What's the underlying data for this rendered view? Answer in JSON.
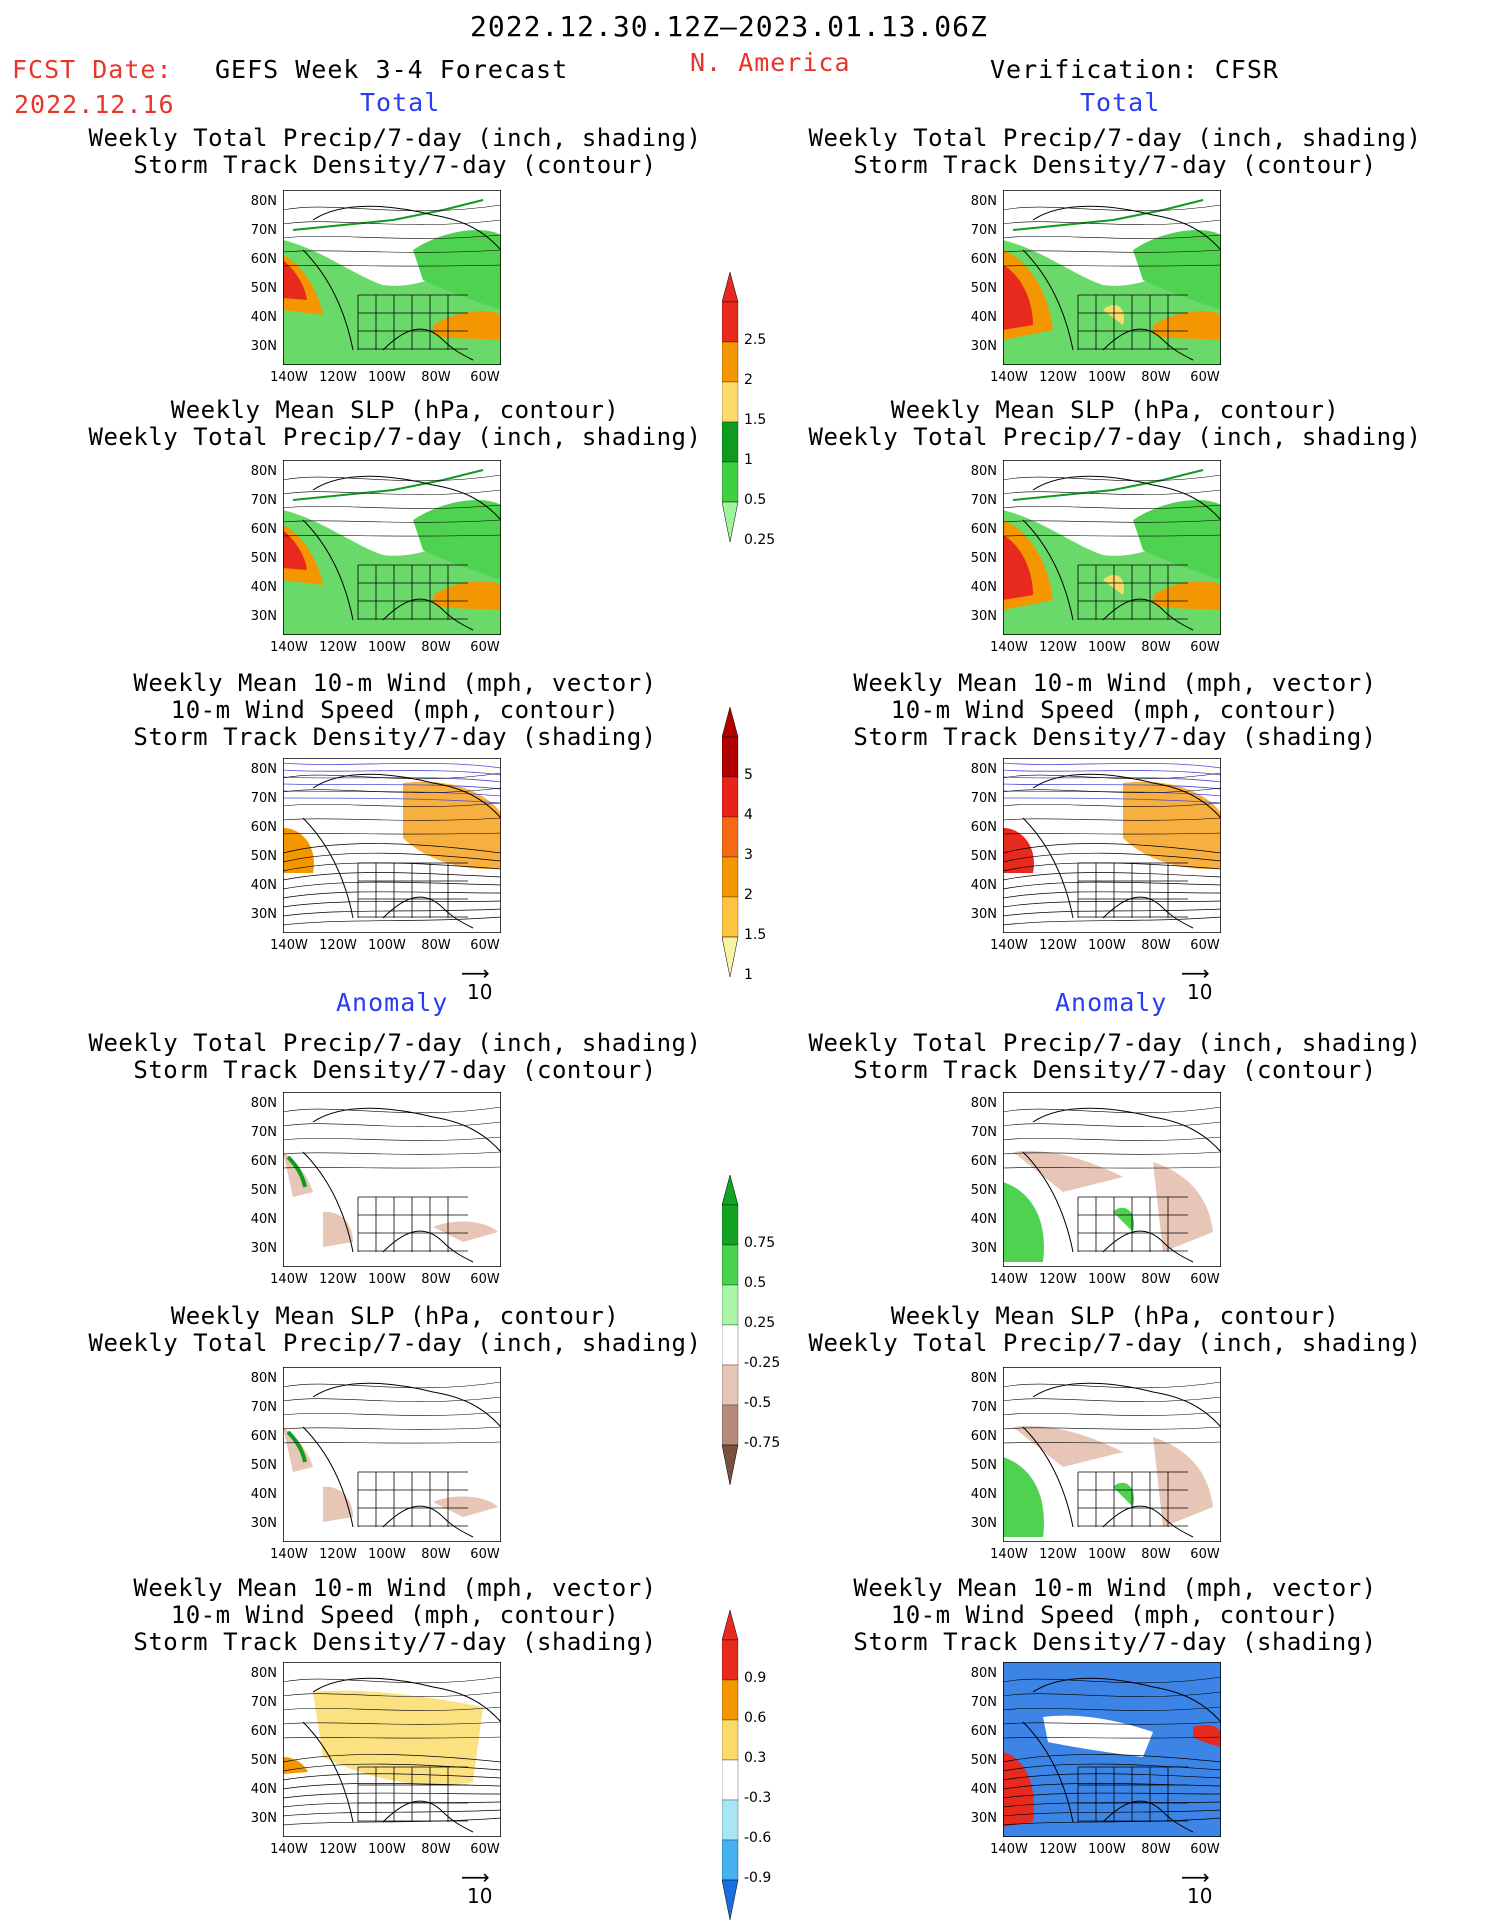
{
  "header": {
    "date_range": "2022.12.30.12Z–2023.01.13.06Z",
    "fcst_date_label": "FCST Date:",
    "fcst_date_value": "2022.12.16",
    "forecast_label": "GEFS Week 3-4 Forecast",
    "region": "N. America",
    "verification_label": "Verification: CFSR"
  },
  "sections": {
    "total": "Total",
    "anomaly": "Anomaly"
  },
  "titles": {
    "precip_track": [
      "Weekly Total Precip/7-day (inch, shading)",
      "Storm Track Density/7-day (contour)"
    ],
    "slp_precip": [
      "Weekly Mean SLP (hPa, contour)",
      "Weekly Total Precip/7-day (inch, shading)"
    ],
    "wind_track": [
      "Weekly Mean 10-m Wind (mph, vector)",
      "10-m Wind Speed (mph, contour)",
      "Storm Track Density/7-day (shading)"
    ]
  },
  "axes": {
    "lat_labels": [
      "80N",
      "70N",
      "60N",
      "50N",
      "40N",
      "30N"
    ],
    "lon_labels": [
      "140W",
      "120W",
      "100W",
      "80W",
      "60W"
    ]
  },
  "vector_reference": "10",
  "colorbars": [
    {
      "labels": [
        "2.5",
        "2",
        "1.5",
        "1",
        "0.5",
        "0.25"
      ],
      "colors": [
        "#e8291e",
        "#f49600",
        "#fbdc6a",
        "#0f9b1e",
        "#3fd041",
        "#9ff59b"
      ]
    },
    {
      "labels": [
        "5",
        "4",
        "3",
        "2",
        "1.5",
        "1"
      ],
      "colors": [
        "#b00000",
        "#e82318",
        "#f46a14",
        "#f49600",
        "#fcc440",
        "#fbf3a4"
      ]
    },
    {
      "labels": [
        "0.75",
        "0.5",
        "0.25",
        "-0.25",
        "-0.5",
        "-0.75"
      ],
      "colors": [
        "#13a322",
        "#48d24e",
        "#a9f4a7",
        "#ffffff",
        "#e7c5b7",
        "#b88a7a",
        "#7a5041"
      ]
    },
    {
      "labels": [
        "0.9",
        "0.6",
        "0.3",
        "-0.3",
        "-0.6",
        "-0.9"
      ],
      "colors": [
        "#e8291e",
        "#f49600",
        "#fbdc6a",
        "#ffffff",
        "#a7e6f5",
        "#46b1f1",
        "#1a6fe0"
      ]
    }
  ],
  "panel_colors": {
    "land": "#ffffff",
    "precip_green": "#4fd24f",
    "precip_dark": "#0f9b1e",
    "precip_orange": "#f49600",
    "precip_red": "#e8291e",
    "precip_yellow": "#fbdc6a",
    "anom_brown": "#e7c5b7",
    "anom_blue": "#1a6fe0",
    "contour_blue": "#4b4bd8"
  }
}
